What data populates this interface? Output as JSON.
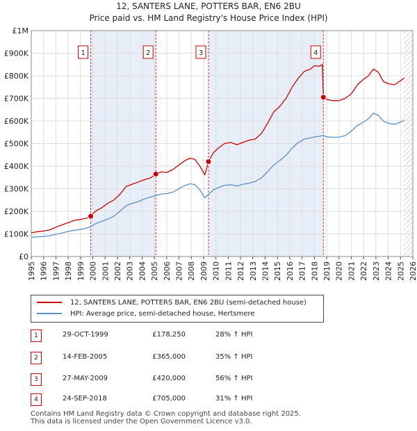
{
  "chart_data": {
    "type": "line",
    "title": "12, SANTERS LANE, POTTERS BAR, EN6 2BU",
    "subtitle": "Price paid vs. HM Land Registry's House Price Index (HPI)",
    "xlim": [
      1995,
      2026
    ],
    "ylim": [
      0,
      1000000
    ],
    "y_ticks": [
      {
        "value": 0,
        "label": "£0"
      },
      {
        "value": 100000,
        "label": "£100K"
      },
      {
        "value": 200000,
        "label": "£200K"
      },
      {
        "value": 300000,
        "label": "£300K"
      },
      {
        "value": 400000,
        "label": "£400K"
      },
      {
        "value": 500000,
        "label": "£500K"
      },
      {
        "value": 600000,
        "label": "£600K"
      },
      {
        "value": 700000,
        "label": "£700K"
      },
      {
        "value": 800000,
        "label": "£800K"
      },
      {
        "value": 900000,
        "label": "£900K"
      },
      {
        "value": 1000000,
        "label": "£1M"
      }
    ],
    "x_ticks": [
      "1995",
      "1996",
      "1997",
      "1998",
      "1999",
      "2000",
      "2001",
      "2002",
      "2003",
      "2004",
      "2005",
      "2006",
      "2007",
      "2008",
      "2009",
      "2010",
      "2011",
      "2012",
      "2013",
      "2014",
      "2015",
      "2016",
      "2017",
      "2018",
      "2019",
      "2020",
      "2021",
      "2022",
      "2023",
      "2024",
      "2025",
      "2026"
    ],
    "series": [
      {
        "name": "12, SANTERS LANE, POTTERS BAR, EN6 2BU (semi-detached house)",
        "color": "#cc0000",
        "points": [
          [
            1995.0,
            105000
          ],
          [
            1995.5,
            110000
          ],
          [
            1996.0,
            113000
          ],
          [
            1996.5,
            118000
          ],
          [
            1997.0,
            130000
          ],
          [
            1997.5,
            140000
          ],
          [
            1998.0,
            150000
          ],
          [
            1998.5,
            160000
          ],
          [
            1999.0,
            164000
          ],
          [
            1999.5,
            170000
          ],
          [
            1999.83,
            178250
          ],
          [
            2000.2,
            200000
          ],
          [
            2000.7,
            215000
          ],
          [
            2001.2,
            235000
          ],
          [
            2001.7,
            250000
          ],
          [
            2002.2,
            275000
          ],
          [
            2002.7,
            310000
          ],
          [
            2003.2,
            320000
          ],
          [
            2003.7,
            330000
          ],
          [
            2004.2,
            340000
          ],
          [
            2004.7,
            348000
          ],
          [
            2005.12,
            365000
          ],
          [
            2005.6,
            375000
          ],
          [
            2006.0,
            372000
          ],
          [
            2006.5,
            385000
          ],
          [
            2007.0,
            405000
          ],
          [
            2007.5,
            425000
          ],
          [
            2007.9,
            435000
          ],
          [
            2008.3,
            430000
          ],
          [
            2008.7,
            400000
          ],
          [
            2009.1,
            362000
          ],
          [
            2009.4,
            420000
          ],
          [
            2009.8,
            460000
          ],
          [
            2010.2,
            480000
          ],
          [
            2010.7,
            500000
          ],
          [
            2011.2,
            505000
          ],
          [
            2011.7,
            495000
          ],
          [
            2012.2,
            505000
          ],
          [
            2012.7,
            515000
          ],
          [
            2013.2,
            520000
          ],
          [
            2013.7,
            545000
          ],
          [
            2014.2,
            590000
          ],
          [
            2014.7,
            640000
          ],
          [
            2015.2,
            665000
          ],
          [
            2015.7,
            700000
          ],
          [
            2016.2,
            750000
          ],
          [
            2016.7,
            790000
          ],
          [
            2017.2,
            820000
          ],
          [
            2017.7,
            830000
          ],
          [
            2018.0,
            845000
          ],
          [
            2018.4,
            842000
          ],
          [
            2018.65,
            850000
          ],
          [
            2018.73,
            705000
          ],
          [
            2019.0,
            695000
          ],
          [
            2019.5,
            690000
          ],
          [
            2020.0,
            690000
          ],
          [
            2020.5,
            700000
          ],
          [
            2021.0,
            720000
          ],
          [
            2021.5,
            760000
          ],
          [
            2022.0,
            785000
          ],
          [
            2022.4,
            800000
          ],
          [
            2022.8,
            830000
          ],
          [
            2023.2,
            815000
          ],
          [
            2023.6,
            775000
          ],
          [
            2024.0,
            765000
          ],
          [
            2024.5,
            760000
          ],
          [
            2025.0,
            778000
          ],
          [
            2025.3,
            790000
          ]
        ]
      },
      {
        "name": "HPI: Average price, semi-detached house, Hertsmere",
        "color": "#5b8fc8",
        "points": [
          [
            1995.0,
            85000
          ],
          [
            1995.5,
            87000
          ],
          [
            1996.0,
            89000
          ],
          [
            1996.5,
            92000
          ],
          [
            1997.0,
            98000
          ],
          [
            1997.5,
            104000
          ],
          [
            1998.0,
            111000
          ],
          [
            1998.5,
            116000
          ],
          [
            1999.0,
            120000
          ],
          [
            1999.5,
            126000
          ],
          [
            1999.83,
            132000
          ],
          [
            2000.2,
            145000
          ],
          [
            2000.7,
            155000
          ],
          [
            2001.2,
            165000
          ],
          [
            2001.7,
            178000
          ],
          [
            2002.2,
            200000
          ],
          [
            2002.7,
            225000
          ],
          [
            2003.2,
            235000
          ],
          [
            2003.7,
            243000
          ],
          [
            2004.2,
            255000
          ],
          [
            2004.7,
            263000
          ],
          [
            2005.12,
            270000
          ],
          [
            2005.6,
            277000
          ],
          [
            2006.0,
            278000
          ],
          [
            2006.5,
            285000
          ],
          [
            2007.0,
            300000
          ],
          [
            2007.5,
            315000
          ],
          [
            2007.9,
            322000
          ],
          [
            2008.3,
            318000
          ],
          [
            2008.7,
            295000
          ],
          [
            2009.1,
            260000
          ],
          [
            2009.4,
            275000
          ],
          [
            2009.8,
            295000
          ],
          [
            2010.2,
            305000
          ],
          [
            2010.7,
            315000
          ],
          [
            2011.2,
            318000
          ],
          [
            2011.7,
            312000
          ],
          [
            2012.2,
            320000
          ],
          [
            2012.7,
            325000
          ],
          [
            2013.2,
            332000
          ],
          [
            2013.7,
            348000
          ],
          [
            2014.2,
            375000
          ],
          [
            2014.7,
            405000
          ],
          [
            2015.2,
            425000
          ],
          [
            2015.7,
            448000
          ],
          [
            2016.2,
            480000
          ],
          [
            2016.7,
            505000
          ],
          [
            2017.2,
            520000
          ],
          [
            2017.7,
            525000
          ],
          [
            2018.0,
            530000
          ],
          [
            2018.4,
            532000
          ],
          [
            2018.73,
            536000
          ],
          [
            2019.0,
            530000
          ],
          [
            2019.5,
            528000
          ],
          [
            2020.0,
            528000
          ],
          [
            2020.5,
            535000
          ],
          [
            2021.0,
            555000
          ],
          [
            2021.5,
            580000
          ],
          [
            2022.0,
            595000
          ],
          [
            2022.4,
            610000
          ],
          [
            2022.8,
            635000
          ],
          [
            2023.2,
            625000
          ],
          [
            2023.6,
            600000
          ],
          [
            2024.0,
            590000
          ],
          [
            2024.5,
            585000
          ],
          [
            2025.0,
            595000
          ],
          [
            2025.3,
            605000
          ]
        ]
      }
    ],
    "sales": [
      {
        "id": "1",
        "x": 1999.83,
        "price": 178250,
        "date": "29-OCT-1999",
        "price_label": "£178,250",
        "hpi": "28% ↑ HPI"
      },
      {
        "id": "2",
        "x": 2005.12,
        "price": 365000,
        "date": "14-FEB-2005",
        "price_label": "£365,000",
        "hpi": "35% ↑ HPI"
      },
      {
        "id": "3",
        "x": 2009.4,
        "price": 420000,
        "date": "27-MAY-2009",
        "price_label": "£420,000",
        "hpi": "56% ↑ HPI"
      },
      {
        "id": "4",
        "x": 2018.73,
        "price": 705000,
        "date": "24-SEP-2018",
        "price_label": "£705,000",
        "hpi": "31% ↑ HPI"
      }
    ],
    "shaded_spans": [
      [
        1999.83,
        2005.12
      ],
      [
        2009.4,
        2018.73
      ]
    ],
    "future_hatch_from": 2025.25
  },
  "footer": {
    "line1": "Contains HM Land Registry data © Crown copyright and database right 2025.",
    "line2": "This data is licensed under the Open Government Licence v3.0."
  }
}
